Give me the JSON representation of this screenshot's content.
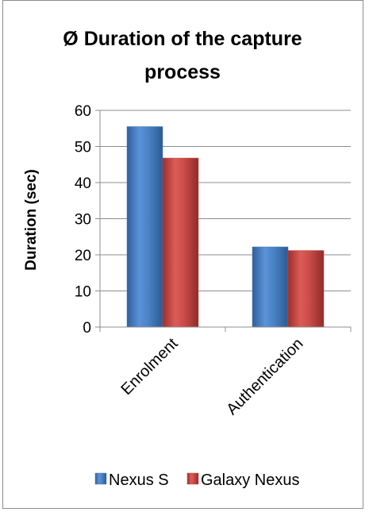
{
  "chart_data": {
    "type": "bar",
    "title_lines": [
      "Ø Duration of the capture",
      "process"
    ],
    "ylabel": "Duration (sec)",
    "xlabel": "",
    "categories": [
      "Enrolment",
      "Authentication"
    ],
    "series": [
      {
        "name": "Nexus S",
        "values": [
          55.5,
          22.2
        ],
        "color": "#4f81bd"
      },
      {
        "name": "Galaxy Nexus",
        "values": [
          46.8,
          21.2
        ],
        "color": "#c0504d"
      }
    ],
    "ylim": [
      0,
      60
    ],
    "yticks": [
      "0",
      "10",
      "20",
      "30",
      "40",
      "50",
      "60"
    ],
    "grid": true,
    "legend_position": "bottom"
  }
}
